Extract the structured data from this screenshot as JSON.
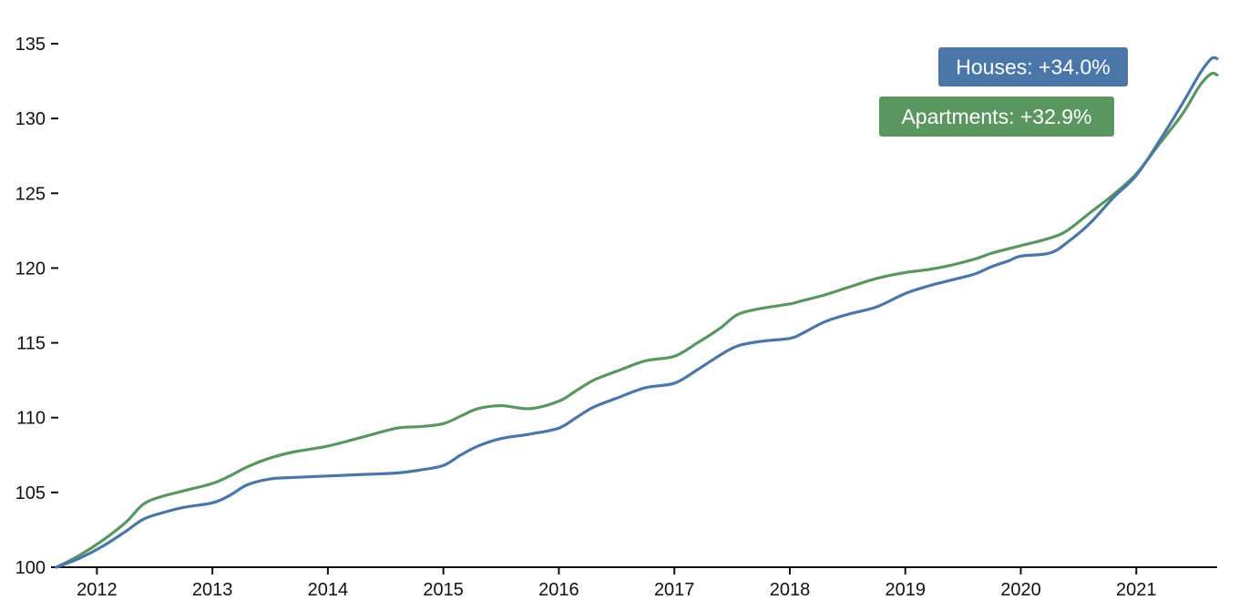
{
  "colors": {
    "houses": "#4a77a8",
    "apartments": "#5a9660",
    "axis": "#111111"
  },
  "badges": {
    "houses": {
      "text": "Houses: +34.0%"
    },
    "apartments": {
      "text": "Apartments: +32.9%"
    }
  },
  "chart_data": {
    "type": "line",
    "title": "",
    "xlabel": "",
    "ylabel": "",
    "ylim": [
      100,
      135
    ],
    "yticks": [
      100,
      105,
      110,
      115,
      120,
      125,
      130,
      135
    ],
    "xlim": [
      2011.65,
      2021.7
    ],
    "xticks": [
      2012,
      2013,
      2014,
      2015,
      2016,
      2017,
      2018,
      2019,
      2020,
      2021
    ],
    "grid": false,
    "series": [
      {
        "name": "Houses",
        "color": "#4a77a8",
        "x": [
          2011.65,
          2011.85,
          2012.05,
          2012.25,
          2012.4,
          2012.55,
          2012.75,
          2013.0,
          2013.15,
          2013.3,
          2013.5,
          2013.7,
          2014.0,
          2014.3,
          2014.6,
          2014.8,
          2015.0,
          2015.15,
          2015.3,
          2015.5,
          2015.75,
          2016.0,
          2016.15,
          2016.3,
          2016.5,
          2016.75,
          2017.0,
          2017.2,
          2017.4,
          2017.55,
          2017.75,
          2018.0,
          2018.1,
          2018.3,
          2018.5,
          2018.75,
          2019.0,
          2019.2,
          2019.4,
          2019.6,
          2019.75,
          2019.9,
          2020.0,
          2020.25,
          2020.4,
          2020.6,
          2020.8,
          2021.0,
          2021.2,
          2021.4,
          2021.55,
          2021.65,
          2021.7
        ],
        "values": [
          100.0,
          100.6,
          101.4,
          102.4,
          103.2,
          103.6,
          104.0,
          104.3,
          104.8,
          105.5,
          105.9,
          106.0,
          106.1,
          106.2,
          106.3,
          106.5,
          106.8,
          107.5,
          108.1,
          108.6,
          108.9,
          109.3,
          110.0,
          110.7,
          111.3,
          112.0,
          112.3,
          113.2,
          114.2,
          114.8,
          115.1,
          115.3,
          115.6,
          116.4,
          116.9,
          117.4,
          118.3,
          118.8,
          119.2,
          119.6,
          120.1,
          120.5,
          120.8,
          121.0,
          121.7,
          123.0,
          124.7,
          126.2,
          128.5,
          131.0,
          133.0,
          134.0,
          134.0
        ]
      },
      {
        "name": "Apartments",
        "color": "#5a9660",
        "x": [
          2011.65,
          2011.85,
          2012.05,
          2012.25,
          2012.4,
          2012.55,
          2012.75,
          2013.0,
          2013.15,
          2013.3,
          2013.5,
          2013.7,
          2014.0,
          2014.3,
          2014.6,
          2014.8,
          2015.0,
          2015.15,
          2015.3,
          2015.5,
          2015.75,
          2016.0,
          2016.15,
          2016.3,
          2016.5,
          2016.75,
          2017.0,
          2017.2,
          2017.4,
          2017.55,
          2017.75,
          2018.0,
          2018.1,
          2018.3,
          2018.5,
          2018.75,
          2019.0,
          2019.2,
          2019.4,
          2019.6,
          2019.75,
          2019.9,
          2020.0,
          2020.25,
          2020.4,
          2020.6,
          2020.8,
          2021.0,
          2021.2,
          2021.4,
          2021.55,
          2021.65,
          2021.7
        ],
        "values": [
          100.0,
          100.8,
          101.8,
          103.0,
          104.2,
          104.7,
          105.1,
          105.6,
          106.1,
          106.7,
          107.3,
          107.7,
          108.1,
          108.7,
          109.3,
          109.4,
          109.6,
          110.1,
          110.6,
          110.8,
          110.6,
          111.1,
          111.8,
          112.5,
          113.1,
          113.8,
          114.1,
          115.0,
          116.0,
          116.9,
          117.3,
          117.6,
          117.8,
          118.2,
          118.7,
          119.3,
          119.7,
          119.9,
          120.2,
          120.6,
          121.0,
          121.3,
          121.5,
          122.0,
          122.5,
          123.7,
          124.9,
          126.3,
          128.3,
          130.3,
          132.2,
          133.0,
          132.9
        ]
      }
    ]
  }
}
